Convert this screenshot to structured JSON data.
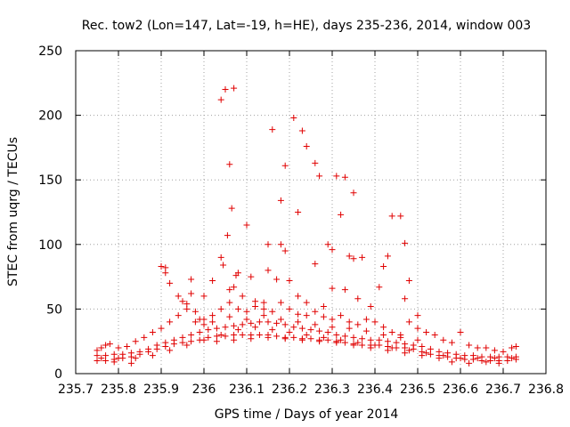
{
  "chart_data": {
    "type": "scatter",
    "title": "Rec. tow2 (Lon=147, Lat=-19, h=HE), days 235-236, 2014, window 003",
    "xlabel": "GPS time / Days of year 2014",
    "ylabel": "STEC from uqrg / TECUs",
    "xlim": [
      235.7,
      236.8
    ],
    "ylim": [
      0,
      250
    ],
    "xticks": [
      235.7,
      235.8,
      235.9,
      236.0,
      236.1,
      236.2,
      236.3,
      236.4,
      236.5,
      236.6,
      236.7,
      236.8
    ],
    "xtick_labels": [
      "235.7",
      "235.8",
      "235.9",
      "236",
      "236.1",
      "236.2",
      "236.3",
      "236.4",
      "236.5",
      "236.6",
      "236.7",
      "236.8"
    ],
    "yticks": [
      0,
      50,
      100,
      150,
      200,
      250
    ],
    "ytick_labels": [
      "0",
      "50",
      "100",
      "150",
      "200",
      "250"
    ],
    "grid": true,
    "marker": "plus",
    "color": "#e00000",
    "series": [
      {
        "points": [
          [
            236.04,
            212
          ],
          [
            236.05,
            220
          ],
          [
            236.07,
            221
          ],
          [
            236.06,
            162
          ],
          [
            236.065,
            128
          ],
          [
            236.055,
            107
          ],
          [
            236.1,
            115
          ],
          [
            236.08,
            78
          ],
          [
            236.075,
            76
          ],
          [
            236.04,
            90
          ],
          [
            236.045,
            84
          ],
          [
            236.16,
            189
          ],
          [
            236.19,
            161
          ],
          [
            236.21,
            198
          ],
          [
            236.23,
            188
          ],
          [
            236.24,
            176
          ],
          [
            236.26,
            163
          ],
          [
            236.18,
            134
          ],
          [
            236.22,
            125
          ],
          [
            236.27,
            153
          ],
          [
            236.31,
            153
          ],
          [
            236.33,
            152
          ],
          [
            236.35,
            140
          ],
          [
            236.32,
            123
          ],
          [
            236.15,
            100
          ],
          [
            236.18,
            100
          ],
          [
            236.19,
            95
          ],
          [
            236.26,
            85
          ],
          [
            236.29,
            100
          ],
          [
            236.3,
            96
          ],
          [
            236.34,
            91
          ],
          [
            236.35,
            89
          ],
          [
            236.37,
            90
          ],
          [
            236.44,
            122
          ],
          [
            236.46,
            122
          ],
          [
            236.47,
            101
          ],
          [
            236.42,
            83
          ],
          [
            236.43,
            91
          ],
          [
            236.48,
            72
          ],
          [
            235.9,
            83
          ],
          [
            235.91,
            78
          ],
          [
            235.91,
            82
          ],
          [
            235.92,
            70
          ],
          [
            235.94,
            60
          ],
          [
            235.95,
            56
          ],
          [
            235.96,
            54
          ],
          [
            235.97,
            73
          ],
          [
            235.97,
            62
          ],
          [
            235.98,
            48
          ],
          [
            235.99,
            42
          ],
          [
            236.0,
            60
          ],
          [
            236.02,
            72
          ],
          [
            236.06,
            65
          ],
          [
            236.07,
            67
          ],
          [
            236.09,
            60
          ],
          [
            236.11,
            75
          ],
          [
            236.12,
            56
          ],
          [
            236.14,
            55
          ],
          [
            236.15,
            80
          ],
          [
            236.17,
            73
          ],
          [
            236.2,
            72
          ],
          [
            236.22,
            60
          ],
          [
            236.24,
            55
          ],
          [
            236.28,
            52
          ],
          [
            236.3,
            66
          ],
          [
            236.33,
            65
          ],
          [
            236.36,
            58
          ],
          [
            236.39,
            52
          ],
          [
            236.41,
            67
          ],
          [
            236.47,
            58
          ],
          [
            236.5,
            45
          ],
          [
            235.75,
            18
          ],
          [
            235.76,
            20
          ],
          [
            235.77,
            22
          ],
          [
            235.78,
            23
          ],
          [
            235.8,
            20
          ],
          [
            235.82,
            21
          ],
          [
            235.84,
            25
          ],
          [
            235.86,
            28
          ],
          [
            235.88,
            32
          ],
          [
            235.9,
            35
          ],
          [
            235.92,
            40
          ],
          [
            235.94,
            45
          ],
          [
            235.96,
            50
          ],
          [
            235.98,
            40
          ],
          [
            236.0,
            38
          ],
          [
            236.02,
            45
          ],
          [
            236.04,
            50
          ],
          [
            236.06,
            55
          ],
          [
            236.08,
            50
          ],
          [
            236.1,
            48
          ],
          [
            236.12,
            52
          ],
          [
            236.14,
            50
          ],
          [
            236.16,
            48
          ],
          [
            236.18,
            55
          ],
          [
            236.2,
            50
          ],
          [
            236.22,
            46
          ],
          [
            236.24,
            45
          ],
          [
            236.26,
            48
          ],
          [
            236.28,
            44
          ],
          [
            236.3,
            42
          ],
          [
            236.32,
            45
          ],
          [
            236.34,
            40
          ],
          [
            236.36,
            38
          ],
          [
            236.38,
            42
          ],
          [
            236.4,
            40
          ],
          [
            236.42,
            36
          ],
          [
            236.44,
            32
          ],
          [
            236.46,
            30
          ],
          [
            236.48,
            40
          ],
          [
            236.5,
            35
          ],
          [
            236.52,
            32
          ],
          [
            236.54,
            30
          ],
          [
            236.56,
            26
          ],
          [
            236.58,
            24
          ],
          [
            236.6,
            32
          ],
          [
            236.62,
            22
          ],
          [
            236.64,
            20
          ],
          [
            236.66,
            20
          ],
          [
            236.68,
            18
          ],
          [
            236.7,
            17
          ],
          [
            236.72,
            20
          ],
          [
            236.73,
            21
          ],
          [
            235.75,
            10
          ],
          [
            235.77,
            10
          ],
          [
            235.79,
            11
          ],
          [
            235.81,
            12
          ],
          [
            235.83,
            13
          ],
          [
            235.85,
            15
          ],
          [
            235.87,
            17
          ],
          [
            235.89,
            19
          ],
          [
            235.91,
            21
          ],
          [
            235.93,
            23
          ],
          [
            235.95,
            24
          ],
          [
            235.97,
            25
          ],
          [
            235.99,
            26
          ],
          [
            236.01,
            28
          ],
          [
            236.03,
            29
          ],
          [
            236.05,
            29
          ],
          [
            236.07,
            30
          ],
          [
            236.09,
            30
          ],
          [
            236.11,
            30
          ],
          [
            236.13,
            30
          ],
          [
            236.15,
            30
          ],
          [
            236.17,
            29
          ],
          [
            236.19,
            28
          ],
          [
            236.21,
            28
          ],
          [
            236.23,
            27
          ],
          [
            236.25,
            27
          ],
          [
            236.27,
            26
          ],
          [
            236.29,
            26
          ],
          [
            236.31,
            25
          ],
          [
            236.33,
            24
          ],
          [
            236.35,
            23
          ],
          [
            236.37,
            22
          ],
          [
            236.39,
            22
          ],
          [
            236.41,
            22
          ],
          [
            236.43,
            21
          ],
          [
            236.45,
            20
          ],
          [
            236.47,
            20
          ],
          [
            236.49,
            19
          ],
          [
            236.51,
            17
          ],
          [
            236.53,
            15
          ],
          [
            236.55,
            14
          ],
          [
            236.57,
            13
          ],
          [
            236.59,
            12
          ],
          [
            236.61,
            11
          ],
          [
            236.63,
            11
          ],
          [
            236.65,
            10
          ],
          [
            236.67,
            10
          ],
          [
            236.69,
            10
          ],
          [
            236.71,
            10
          ],
          [
            236.73,
            11
          ],
          [
            235.75,
            14
          ],
          [
            235.77,
            14
          ],
          [
            235.79,
            15
          ],
          [
            235.81,
            15
          ],
          [
            235.83,
            16
          ],
          [
            235.85,
            17
          ],
          [
            235.87,
            19
          ],
          [
            235.89,
            22
          ],
          [
            235.91,
            24
          ],
          [
            235.93,
            26
          ],
          [
            235.95,
            28
          ],
          [
            235.97,
            30
          ],
          [
            235.99,
            32
          ],
          [
            236.01,
            34
          ],
          [
            236.03,
            35
          ],
          [
            236.05,
            36
          ],
          [
            236.07,
            37
          ],
          [
            236.09,
            38
          ],
          [
            236.11,
            39
          ],
          [
            236.13,
            40
          ],
          [
            236.15,
            40
          ],
          [
            236.17,
            39
          ],
          [
            236.19,
            38
          ],
          [
            236.21,
            36
          ],
          [
            236.23,
            35
          ],
          [
            236.25,
            34
          ],
          [
            236.27,
            33
          ],
          [
            236.29,
            32
          ],
          [
            236.31,
            30
          ],
          [
            236.33,
            29
          ],
          [
            236.35,
            28
          ],
          [
            236.37,
            27
          ],
          [
            236.39,
            26
          ],
          [
            236.41,
            26
          ],
          [
            236.43,
            25
          ],
          [
            236.45,
            24
          ],
          [
            236.47,
            23
          ],
          [
            236.49,
            22
          ],
          [
            236.51,
            21
          ],
          [
            236.53,
            19
          ],
          [
            236.55,
            17
          ],
          [
            236.57,
            16
          ],
          [
            236.59,
            15
          ],
          [
            236.61,
            14
          ],
          [
            236.63,
            14
          ],
          [
            236.65,
            13
          ],
          [
            236.67,
            13
          ],
          [
            236.69,
            13
          ],
          [
            236.71,
            13
          ],
          [
            236.73,
            13
          ],
          [
            235.76,
            12
          ],
          [
            235.8,
            12
          ],
          [
            235.84,
            12
          ],
          [
            235.88,
            14
          ],
          [
            235.92,
            18
          ],
          [
            235.96,
            22
          ],
          [
            236.0,
            26
          ],
          [
            236.04,
            30
          ],
          [
            236.08,
            34
          ],
          [
            236.12,
            36
          ],
          [
            236.16,
            34
          ],
          [
            236.2,
            32
          ],
          [
            236.24,
            30
          ],
          [
            236.28,
            28
          ],
          [
            236.32,
            26
          ],
          [
            236.36,
            24
          ],
          [
            236.4,
            22
          ],
          [
            236.44,
            20
          ],
          [
            236.48,
            18
          ],
          [
            236.52,
            16
          ],
          [
            236.56,
            14
          ],
          [
            236.6,
            12
          ],
          [
            236.64,
            12
          ],
          [
            236.68,
            12
          ],
          [
            236.72,
            12
          ],
          [
            236.0,
            42
          ],
          [
            236.02,
            40
          ],
          [
            236.06,
            44
          ],
          [
            236.1,
            42
          ],
          [
            236.14,
            45
          ],
          [
            236.18,
            42
          ],
          [
            236.22,
            40
          ],
          [
            236.26,
            38
          ],
          [
            236.3,
            36
          ],
          [
            236.34,
            35
          ],
          [
            236.38,
            33
          ],
          [
            236.42,
            30
          ],
          [
            236.46,
            28
          ],
          [
            236.5,
            26
          ],
          [
            236.03,
            25
          ],
          [
            236.07,
            26
          ],
          [
            236.11,
            27
          ],
          [
            236.15,
            28
          ],
          [
            236.19,
            27
          ],
          [
            236.23,
            26
          ],
          [
            236.27,
            25
          ],
          [
            236.31,
            24
          ],
          [
            236.35,
            22
          ],
          [
            236.39,
            20
          ],
          [
            236.43,
            18
          ],
          [
            236.47,
            16
          ],
          [
            236.51,
            14
          ],
          [
            236.55,
            12
          ],
          [
            235.83,
            8
          ],
          [
            235.79,
            9
          ],
          [
            236.58,
            9
          ],
          [
            236.62,
            8
          ],
          [
            236.66,
            9
          ],
          [
            236.69,
            8
          ]
        ]
      }
    ]
  }
}
